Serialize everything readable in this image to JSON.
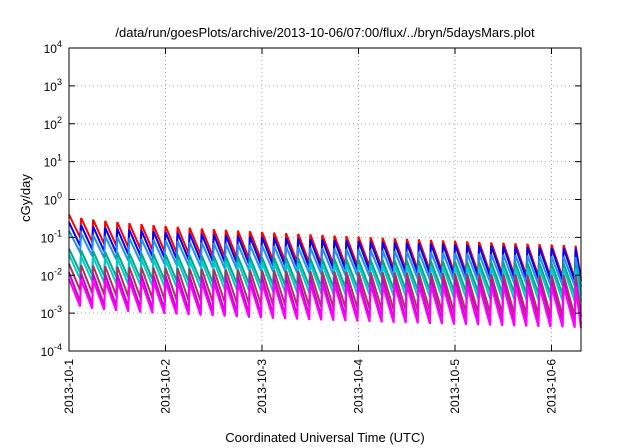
{
  "chart_data": {
    "type": "line",
    "title": "/data/run/goesPlots/archive/2013-10-06/07:00/flux/../bryn/5daysMars.plot",
    "xlabel": "Coordinated Universal Time (UTC)",
    "ylabel": "cGy/day",
    "y_scale": "log",
    "ylim": [
      0.0001,
      10000
    ],
    "xlim": [
      "2013-10-01 00:00",
      "2013-10-06 07:00"
    ],
    "grid": true,
    "legend": "none",
    "x_ticks": [
      "2013-10-1",
      "2013-10-2",
      "2013-10-3",
      "2013-10-4",
      "2013-10-5",
      "2013-10-6"
    ],
    "y_ticks": [
      {
        "base": "10",
        "exp": "-4",
        "value": 0.0001
      },
      {
        "base": "10",
        "exp": "-3",
        "value": 0.001
      },
      {
        "base": "10",
        "exp": "-2",
        "value": 0.01
      },
      {
        "base": "10",
        "exp": "-1",
        "value": 0.1
      },
      {
        "base": "10",
        "exp": "0",
        "value": 1
      },
      {
        "base": "10",
        "exp": "1",
        "value": 10
      },
      {
        "base": "10",
        "exp": "2",
        "value": 100
      },
      {
        "base": "10",
        "exp": "3",
        "value": 1000
      },
      {
        "base": "10",
        "exp": "4",
        "value": 10000
      }
    ],
    "series": [
      {
        "color": "#ff0000",
        "peak_start": 0.4,
        "peak_end": 0.06,
        "trough_start": 0.1,
        "trough_end": 0.008
      },
      {
        "color": "#0000ff",
        "peak_start": 0.25,
        "peak_end": 0.05,
        "trough_start": 0.06,
        "trough_end": 0.007
      },
      {
        "color": "#1e90ff",
        "peak_start": 0.15,
        "peak_end": 0.03,
        "trough_start": 0.04,
        "trough_end": 0.005
      },
      {
        "color": "#00aa88",
        "peak_start": 0.05,
        "peak_end": 0.02,
        "trough_start": 0.012,
        "trough_end": 0.003
      },
      {
        "color": "#00cccc",
        "peak_start": 0.035,
        "peak_end": 0.015,
        "trough_start": 0.008,
        "trough_end": 0.002
      },
      {
        "color": "#b03060",
        "peak_start": 0.02,
        "peak_end": 0.01,
        "trough_start": 0.004,
        "trough_end": 0.0008
      },
      {
        "color": "#cc00cc",
        "peak_start": 0.012,
        "peak_end": 0.007,
        "trough_start": 0.002,
        "trough_end": 0.0005
      },
      {
        "color": "#ff00ff",
        "peak_start": 0.008,
        "peak_end": 0.005,
        "trough_start": 0.0015,
        "trough_end": 0.0004
      }
    ],
    "sawtooth_period_hours": 3,
    "colors": {
      "grid": "#aaaaaa",
      "axis": "#000000",
      "background": "#ffffff"
    }
  }
}
